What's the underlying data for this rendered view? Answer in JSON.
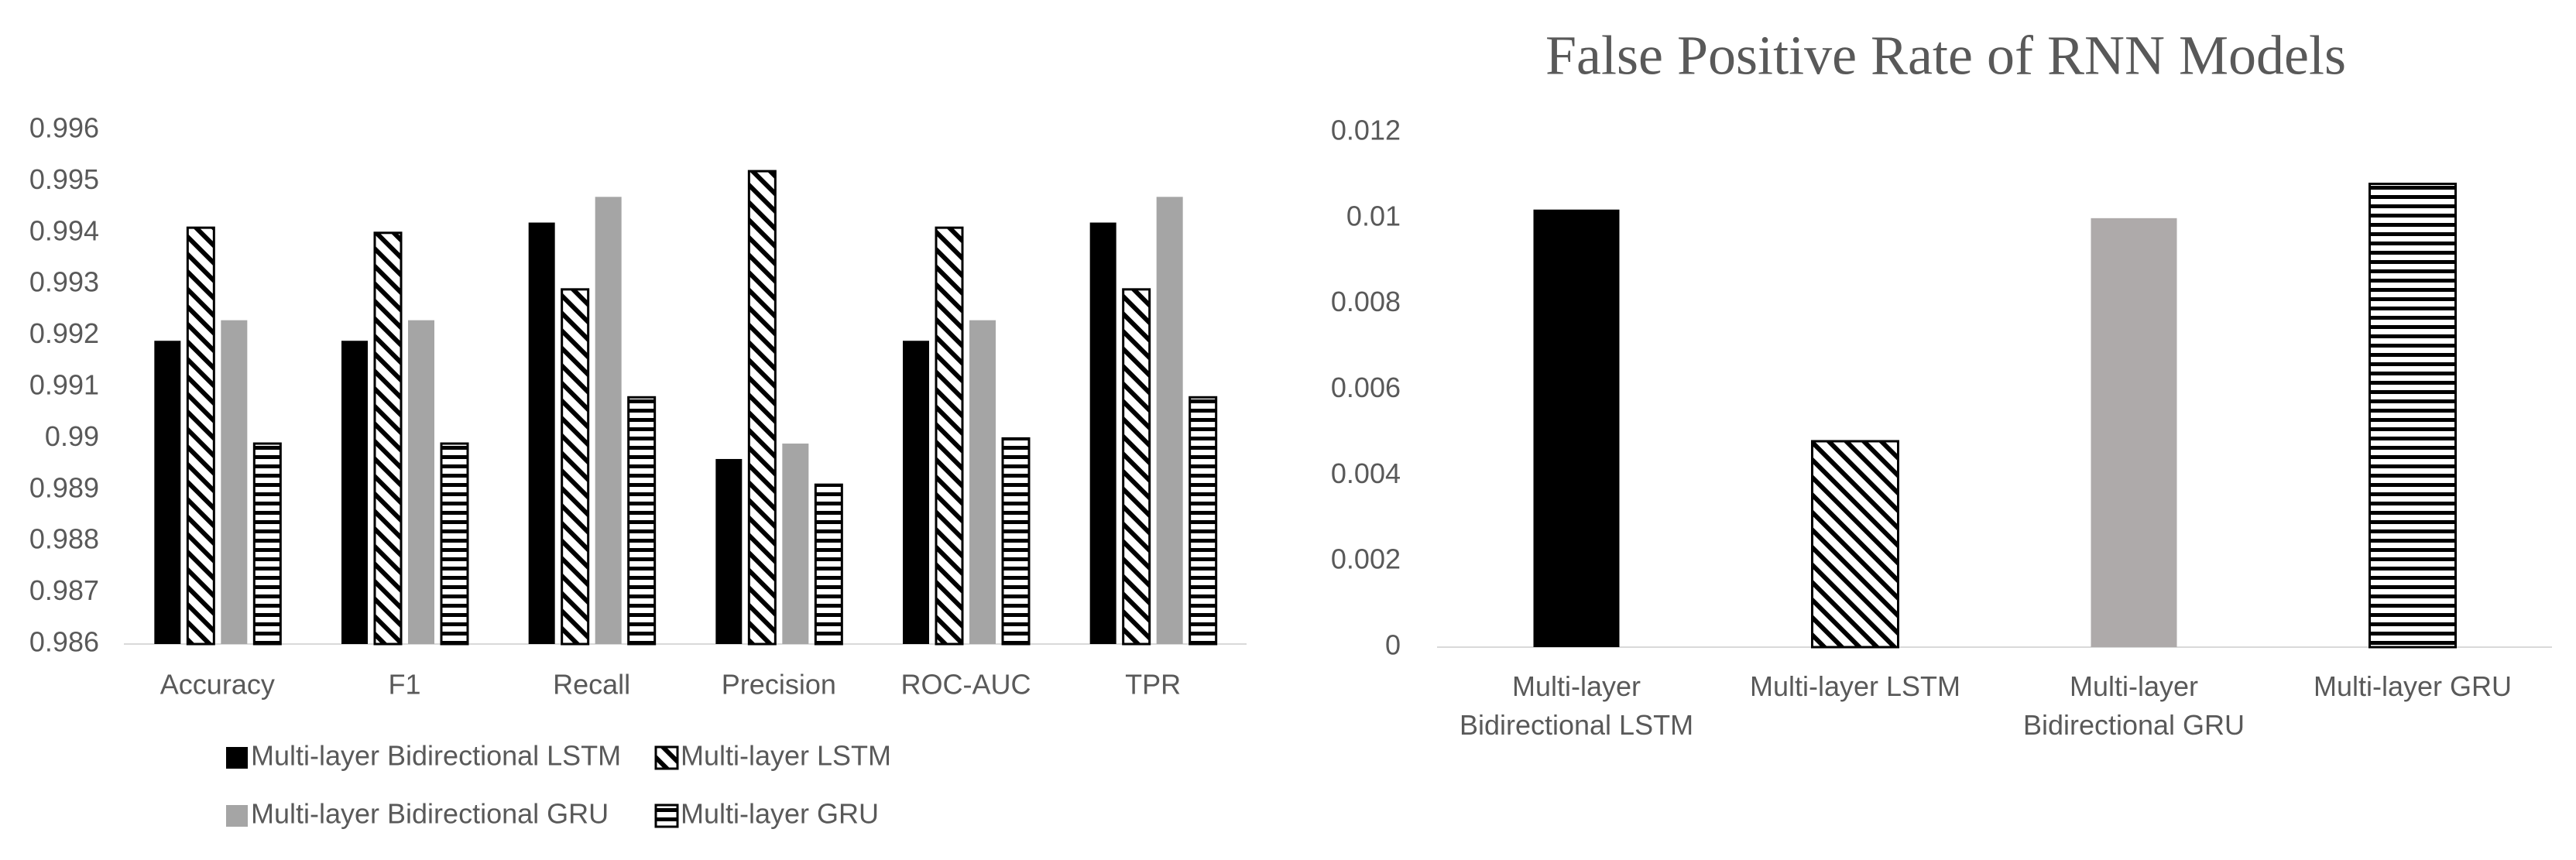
{
  "chart_data": [
    {
      "type": "bar",
      "categories": [
        "Accuracy",
        "F1",
        "Recall",
        "Precision",
        "ROC-AUC",
        "TPR"
      ],
      "series": [
        {
          "name": "Multi-layer Bidirectional LSTM",
          "color": "#000000",
          "hatch": "solid",
          "values": [
            0.9919,
            0.9919,
            0.9942,
            0.9896,
            0.9919,
            0.9942
          ]
        },
        {
          "name": "Multi-layer LSTM",
          "color": "#000000",
          "hatch": "diagonal",
          "values": [
            0.9941,
            0.994,
            0.9929,
            0.9952,
            0.9941,
            0.9929
          ]
        },
        {
          "name": "Multi-layer Bidirectional GRU",
          "color": "#a5a5a5",
          "hatch": "solid",
          "values": [
            0.9923,
            0.9923,
            0.9947,
            0.9899,
            0.9923,
            0.9947
          ]
        },
        {
          "name": "Multi-layer GRU",
          "color": "#000000",
          "hatch": "horizontal",
          "values": [
            0.9899,
            0.9899,
            0.9908,
            0.9891,
            0.99,
            0.9908
          ]
        }
      ],
      "ylim": [
        0.986,
        0.996
      ],
      "yticks": [
        0.986,
        0.987,
        0.988,
        0.989,
        0.99,
        0.991,
        0.992,
        0.993,
        0.994,
        0.995,
        0.996
      ],
      "grid": false,
      "legend": "bottom"
    },
    {
      "type": "bar",
      "title": "False Positive Rate of RNN Models",
      "categories": [
        "Multi-layer Bidirectional LSTM",
        "Multi-layer LSTM",
        "Multi-layer Bidirectional GRU",
        "Multi-layer GRU"
      ],
      "values": [
        0.0102,
        0.0048,
        0.01,
        0.0108
      ],
      "colors": [
        "#000000",
        "#000000",
        "#aeaaaa",
        "#000000"
      ],
      "hatches": [
        "solid",
        "diagonal",
        "solid",
        "horizontal"
      ],
      "ylim": [
        0,
        0.012
      ],
      "yticks": [
        0,
        0.002,
        0.004,
        0.006,
        0.008,
        0.01,
        0.012
      ],
      "grid": false
    }
  ]
}
